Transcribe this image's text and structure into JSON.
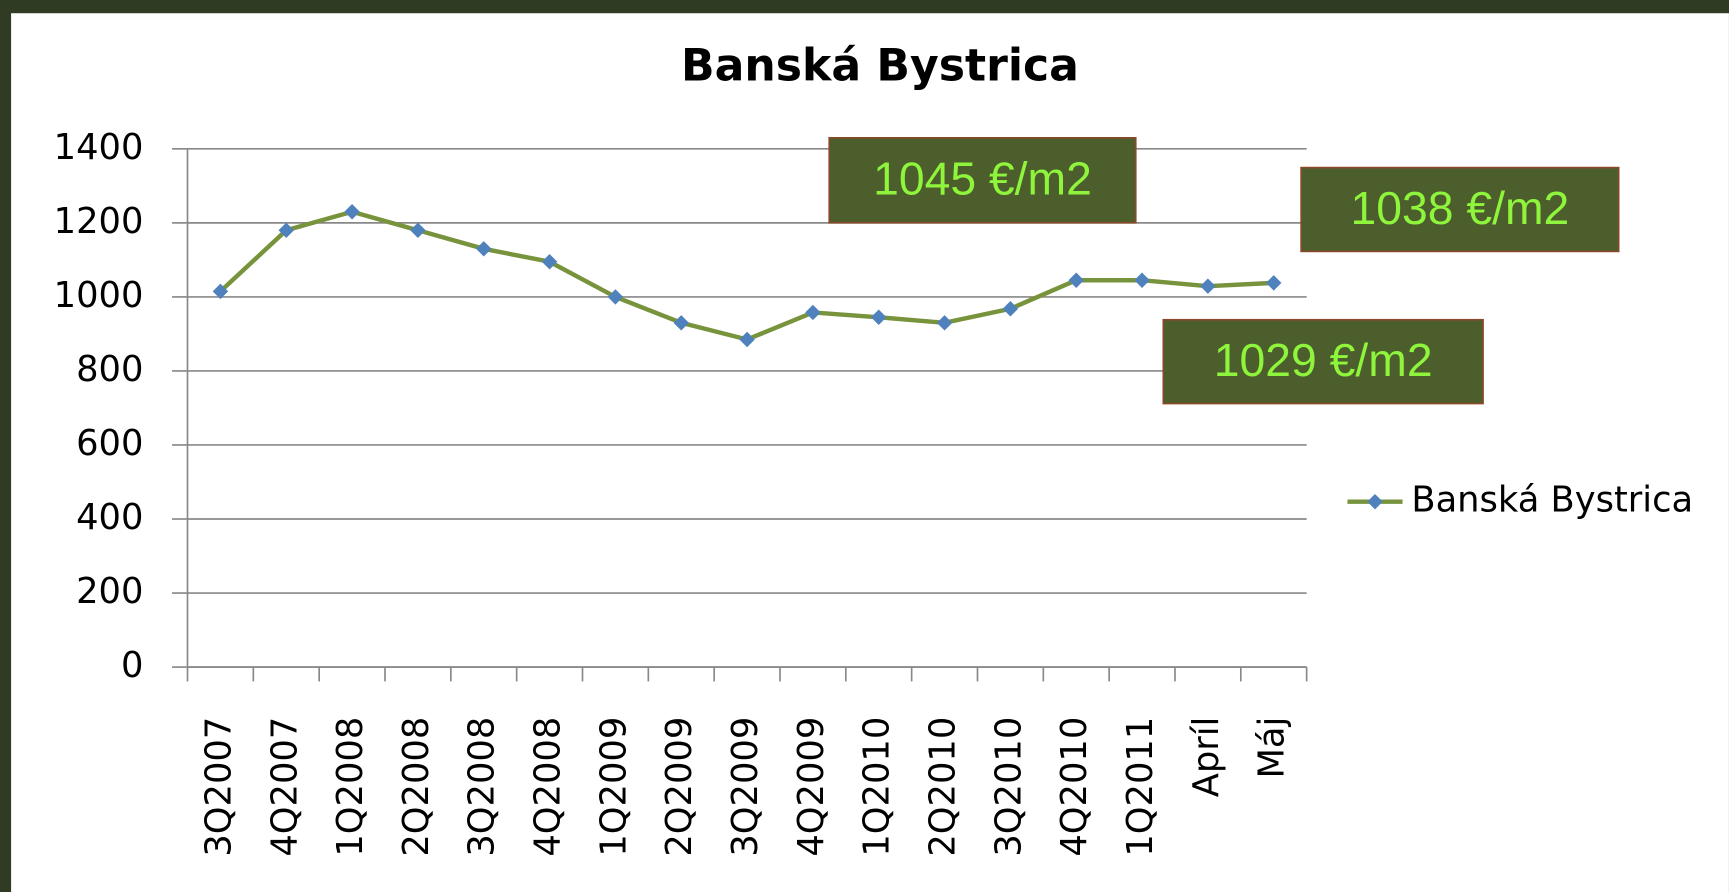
{
  "chart_data": {
    "type": "line",
    "title": "Banská Bystrica",
    "categories": [
      "3Q2007",
      "4Q2007",
      "1Q2008",
      "2Q2008",
      "3Q2008",
      "4Q2008",
      "1Q2009",
      "2Q2009",
      "3Q2009",
      "4Q2009",
      "1Q2010",
      "2Q2010",
      "3Q2010",
      "4Q2010",
      "1Q2011",
      "Apríl",
      "Máj"
    ],
    "series": [
      {
        "name": "Banská Bystrica",
        "color": "#77933c",
        "marker_color": "#4f81bd",
        "values": [
          1015,
          1180,
          1230,
          1180,
          1130,
          1095,
          1000,
          930,
          885,
          958,
          945,
          930,
          968,
          1045,
          1045,
          1029,
          1038
        ]
      }
    ],
    "ylim": [
      0,
      1400
    ],
    "yticks": [
      0,
      200,
      400,
      600,
      800,
      1000,
      1200,
      1400
    ],
    "grid": true,
    "legend": "right",
    "annotations": [
      "1045 €/m2",
      "1038 €/m2",
      "1029 €/m2"
    ]
  }
}
